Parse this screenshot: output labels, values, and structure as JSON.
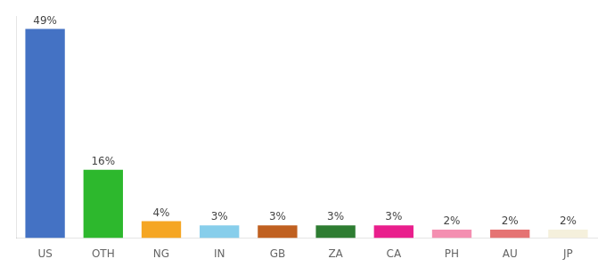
{
  "chart_data": {
    "type": "bar",
    "categories": [
      "US",
      "OTH",
      "NG",
      "IN",
      "GB",
      "ZA",
      "CA",
      "PH",
      "AU",
      "JP"
    ],
    "values": [
      49,
      16,
      4,
      3,
      3,
      3,
      3,
      2,
      2,
      2
    ],
    "value_labels": [
      "49%",
      "16%",
      "4%",
      "3%",
      "3%",
      "3%",
      "3%",
      "2%",
      "2%",
      "2%"
    ],
    "colors": [
      "#4472c4",
      "#2db82d",
      "#f5a623",
      "#87ceeb",
      "#c06020",
      "#2e7d32",
      "#e91e8c",
      "#f48fb1",
      "#e57373",
      "#f5f0dc"
    ],
    "ylim": [
      0,
      52
    ],
    "data_labels": true,
    "tick_labels": "x",
    "grid": false
  }
}
